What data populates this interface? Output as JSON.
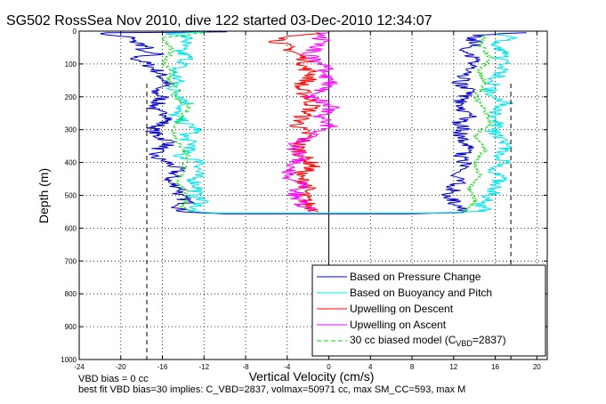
{
  "chart_data": {
    "type": "line",
    "title": "SG502 RossSea Nov 2010, dive 122 started 03-Dec-2010 12:34:07",
    "xlabel": "Vertical Velocity (cm/s)",
    "ylabel": "Depth (m)",
    "xlim": [
      -24,
      21
    ],
    "ylim": [
      1000,
      0
    ],
    "y_reversed": true,
    "grid": true,
    "grid_style": "dotted",
    "xticks": [
      "-24",
      "-20",
      "-16",
      "-12",
      "-8",
      "-4",
      "0",
      "4",
      "8",
      "12",
      "16",
      "20"
    ],
    "yticks": [
      "0",
      "100",
      "200",
      "300",
      "400",
      "500",
      "600",
      "700",
      "800",
      "900",
      "1000"
    ],
    "legend_position": "bottom-right",
    "legend": {
      "pressure": "Based on Pressure Change",
      "buoyancy": "Based on Buoyancy and Pitch",
      "up_descent": "Upwelling on Descent",
      "up_ascent": "Upwelling on Ascent",
      "model_pre": "30 cc biased model (C",
      "model_sub": "VBD",
      "model_post": "=2837)"
    },
    "series": [
      {
        "key": "pressure",
        "color": "#0000cc",
        "descent": {
          "depth": [
            2,
            5,
            10,
            15,
            20,
            30,
            40,
            50,
            60,
            70,
            80,
            90,
            100,
            120,
            140,
            160,
            180,
            200,
            220,
            240,
            260,
            280,
            300,
            320,
            340,
            360,
            380,
            400,
            420,
            440,
            460,
            480,
            500,
            520,
            540,
            548,
            552
          ],
          "velocity": [
            -9,
            -21,
            -22,
            -20,
            -19,
            -19,
            -18,
            -17.5,
            -18.5,
            -16.5,
            -19,
            -18,
            -17.5,
            -16.5,
            -16,
            -15.5,
            -17,
            -16,
            -16.5,
            -17,
            -15,
            -16,
            -17,
            -16.5,
            -15,
            -16.5,
            -17,
            -15.5,
            -14.5,
            -15,
            -15.5,
            -14,
            -14.5,
            -13.5,
            -14.5,
            -14,
            -13
          ]
        },
        "ascent": {
          "depth": [
            548,
            540,
            520,
            500,
            480,
            460,
            440,
            420,
            400,
            380,
            360,
            340,
            320,
            300,
            280,
            260,
            240,
            220,
            200,
            180,
            160,
            140,
            120,
            100,
            80,
            60,
            40,
            20,
            10,
            5
          ],
          "velocity": [
            13,
            12.5,
            12,
            11.5,
            12,
            12.5,
            12,
            12.5,
            13,
            12.5,
            13.5,
            13,
            12.5,
            13,
            12.5,
            13.5,
            13,
            12.5,
            13,
            13.5,
            12.5,
            13,
            14,
            13.5,
            14,
            13,
            14.5,
            13.5,
            15,
            19
          ]
        },
        "transition": {
          "depth": [
            552,
            556,
            556,
            552
          ],
          "velocity": [
            -13,
            -10,
            8,
            13
          ]
        }
      },
      {
        "key": "buoyancy",
        "color": "#00e5e5",
        "descent": {
          "depth": [
            2,
            8,
            15,
            25,
            40,
            60,
            80,
            100,
            120,
            150,
            180,
            200,
            220,
            250,
            280,
            300,
            320,
            350,
            380,
            400,
            420,
            450,
            480,
            500,
            520,
            540,
            548
          ],
          "velocity": [
            -12,
            -15,
            -14,
            -13.5,
            -14,
            -14.5,
            -13.5,
            -14,
            -15,
            -14.5,
            -15,
            -14,
            -13.5,
            -15,
            -14,
            -12.5,
            -14,
            -13,
            -14.5,
            -12,
            -12.5,
            -13,
            -12.5,
            -13,
            -12,
            -13,
            -13.5
          ]
        },
        "ascent": {
          "depth": [
            548,
            530,
            500,
            480,
            450,
            420,
            400,
            380,
            350,
            320,
            300,
            280,
            250,
            220,
            200,
            180,
            150,
            120,
            100,
            80,
            60,
            40,
            20,
            10
          ],
          "velocity": [
            15,
            14.5,
            15.5,
            16,
            16.5,
            16,
            17,
            16,
            17,
            16.5,
            15.5,
            16.5,
            16,
            17,
            16,
            15.5,
            16,
            16.5,
            17,
            16.5,
            17,
            16,
            17.5,
            16
          ]
        },
        "transition": {
          "depth": [
            548,
            554,
            554,
            548
          ],
          "velocity": [
            -13.5,
            -11,
            10,
            15
          ]
        }
      },
      {
        "key": "up_descent",
        "color": "#ff0000",
        "descent": {
          "depth": [
            5,
            15,
            30,
            50,
            70,
            90,
            110,
            130,
            150,
            170,
            200,
            230,
            260,
            290,
            320,
            350,
            380,
            410,
            440,
            470,
            500,
            530,
            550
          ],
          "velocity": [
            -1,
            -3,
            -5,
            -4,
            -3,
            -2,
            -2.5,
            -1.5,
            -2,
            -3,
            -2,
            -1.5,
            -2.5,
            -3,
            -2,
            -3,
            -2.5,
            -1.5,
            -3,
            -2,
            -2.5,
            -2,
            -1
          ]
        }
      },
      {
        "key": "up_ascent",
        "color": "#ff00ff",
        "ascent": {
          "depth": [
            550,
            530,
            500,
            470,
            440,
            410,
            380,
            350,
            320,
            290,
            260,
            230,
            200,
            170,
            150,
            130,
            110,
            90,
            70,
            50,
            30,
            15,
            5
          ],
          "velocity": [
            -1,
            -2.5,
            -3.5,
            -2.5,
            -4,
            -3.5,
            -2.5,
            -3.5,
            -2,
            0,
            -1,
            0.5,
            -1.5,
            -0.5,
            0.5,
            -1,
            0,
            -1.5,
            -2,
            -1,
            0,
            -1.5,
            0
          ]
        }
      },
      {
        "key": "model",
        "color": "#00dd00",
        "style": "dashed",
        "descent": {
          "depth": [
            5,
            20,
            40,
            60,
            80,
            100,
            120,
            150,
            180,
            200,
            230,
            260,
            300,
            340,
            380,
            420,
            460,
            500,
            540,
            550
          ],
          "velocity": [
            -12,
            -16,
            -15.5,
            -15,
            -15.5,
            -16,
            -15,
            -15.5,
            -14.5,
            -15,
            -13.5,
            -14,
            -15,
            -14.5,
            -13.5,
            -14,
            -14.5,
            -13.5,
            -14,
            -13
          ]
        },
        "ascent": {
          "depth": [
            550,
            520,
            480,
            440,
            400,
            360,
            320,
            280,
            240,
            200,
            160,
            120,
            80,
            40,
            10
          ],
          "velocity": [
            13,
            14,
            13.5,
            14.5,
            14,
            15,
            14,
            15.5,
            15,
            14,
            15,
            14.5,
            15.5,
            14.5,
            15
          ]
        }
      },
      {
        "key": "bounds",
        "color": "#000000",
        "style": "dashed",
        "lines": [
          {
            "velocity": -17.5,
            "depth": [
              160,
              1000
            ]
          },
          {
            "velocity": 17.5,
            "depth": [
              160,
              1000
            ]
          }
        ]
      }
    ]
  },
  "footer": {
    "line1": "VBD bias = 0 cc",
    "line2": "best fit VBD bias=30 implies: C_VBD=2837, volmax=50971 cc, max SM_CC=593, max M"
  }
}
